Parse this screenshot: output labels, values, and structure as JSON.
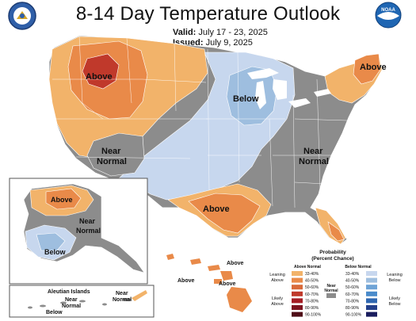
{
  "title": "8-14 Day Temperature Outlook",
  "valid_label": "Valid:",
  "valid_value": "July 17 - 23, 2025",
  "issued_label": "Issued:",
  "issued_value": "July 9, 2025",
  "colors": {
    "above_33_40": "#f2b36a",
    "above_40_50": "#e98a49",
    "above_50_60": "#d96a3a",
    "above_60_70": "#c0392b",
    "above_70_80": "#a51d24",
    "above_80_90": "#7d1420",
    "above_90_100": "#4f0d17",
    "below_33_40": "#c7d7ee",
    "below_40_50": "#9ebedf",
    "below_50_60": "#6ea3d6",
    "below_60_70": "#4a8bcb",
    "below_70_80": "#2f67b1",
    "below_80_90": "#233f8a",
    "below_90_100": "#1a1d5e",
    "near_normal": "#8c8c8c",
    "water": "#ffffff",
    "border": "#ffffff"
  },
  "map_labels": {
    "conus_above_nw": "Above",
    "conus_below_ne": "Below",
    "conus_above_east": "Above",
    "conus_near_west_1": "Near",
    "conus_near_west_2": "Normal",
    "conus_near_se_1": "Near",
    "conus_near_se_2": "Normal",
    "conus_above_south": "Above",
    "alaska_above": "Above",
    "alaska_near_1": "Near",
    "alaska_near_2": "Normal",
    "alaska_below": "Below",
    "hawaii_above_1": "Above",
    "hawaii_above_2": "Above",
    "hawaii_above_3": "Above",
    "aleutian_title": "Aleutian Islands",
    "aleutian_near_1": "Near",
    "aleutian_near_2": "Normal",
    "aleutian_near_3": "Near",
    "aleutian_near_4": "Normal",
    "aleutian_below": "Below"
  },
  "legend": {
    "title_1": "Probability",
    "title_2": "(Percent Chance)",
    "above_header": "Above Normal",
    "below_header": "Below Normal",
    "near_label_1": "Near",
    "near_label_2": "Normal",
    "leaning_above_1": "Leaning",
    "leaning_above_2": "Above",
    "likely_above_1": "Likely",
    "likely_above_2": "Above",
    "leaning_below_1": "Leaning",
    "leaning_below_2": "Below",
    "likely_below_1": "Likely",
    "likely_below_2": "Below",
    "above_ranges": [
      "33-40%",
      "40-50%",
      "50-60%",
      "60-70%",
      "70-80%",
      "80-90%",
      "90-100%"
    ],
    "below_ranges": [
      "33-40%",
      "40-50%",
      "50-60%",
      "60-70%",
      "70-80%",
      "80-90%",
      "90-100%"
    ]
  },
  "logos": {
    "doc_seal": "department-of-commerce-seal",
    "noaa": "noaa-logo"
  }
}
